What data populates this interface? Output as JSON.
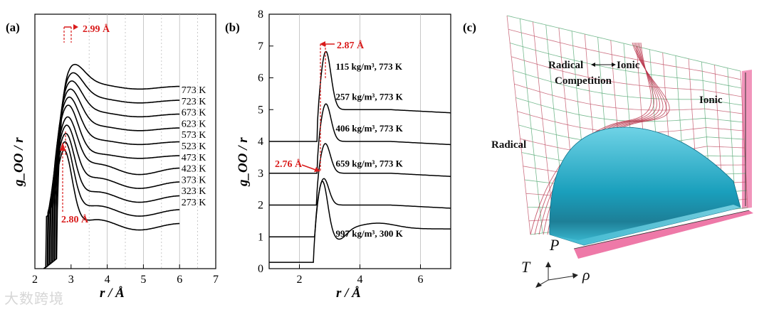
{
  "chart_data": [
    {
      "type": "line",
      "panel": "(a)",
      "title": "",
      "xlabel": "r / Å",
      "ylabel": "g_OO / r",
      "xlim": [
        2,
        7
      ],
      "xticks": [
        2,
        3,
        4,
        5,
        6,
        7
      ],
      "grid": "vertical dotted lines",
      "series": [
        {
          "name": "773 K",
          "peak_r": 2.99
        },
        {
          "name": "723 K"
        },
        {
          "name": "673 K"
        },
        {
          "name": "623 K"
        },
        {
          "name": "573 K"
        },
        {
          "name": "523 K"
        },
        {
          "name": "473 K"
        },
        {
          "name": "423 K"
        },
        {
          "name": "373 K"
        },
        {
          "name": "323 K"
        },
        {
          "name": "273 K",
          "peak_r": 2.8
        }
      ],
      "annotations": [
        "2.99 Å",
        "2.80 Å"
      ]
    },
    {
      "type": "line",
      "panel": "(b)",
      "title": "",
      "xlabel": "r / Å",
      "ylabel": "g_OO / r",
      "xlim": [
        1,
        7
      ],
      "ylim": [
        0,
        8
      ],
      "xticks": [
        2,
        4,
        6
      ],
      "yticks": [
        0,
        1,
        2,
        3,
        4,
        5,
        6,
        7,
        8
      ],
      "series": [
        {
          "name": "115 kg/m³, 773 K",
          "offset": 4,
          "peak_r": 2.87,
          "peak_value": 2.85,
          "tail_value": 1.0
        },
        {
          "name": "257 kg/m³, 773 K",
          "offset": 3,
          "peak_r": 2.87,
          "peak_value": 2.2,
          "tail_value": 1.0
        },
        {
          "name": "406 kg/m³, 773 K",
          "offset": 2,
          "peak_r": 2.85,
          "peak_value": 1.95,
          "tail_value": 1.0
        },
        {
          "name": "659 kg/m³, 773 K",
          "offset": 1,
          "peak_r": 2.8,
          "peak_value": 1.85,
          "tail_value": 1.0
        },
        {
          "name": "997 kg/m³, 300 K",
          "offset": 0,
          "peak_r": 2.76,
          "peak_value": 2.6,
          "tail_value": 1.05
        }
      ],
      "annotations": [
        "2.87 Å",
        "2.76 Å"
      ]
    },
    {
      "type": "other",
      "panel": "(c)",
      "description_labels": [
        "Radical",
        "Ionic",
        "Competition",
        "Ionic",
        "Radical"
      ],
      "axes": [
        "P",
        "T",
        "ρ"
      ]
    }
  ],
  "watermark": "大数跨境"
}
